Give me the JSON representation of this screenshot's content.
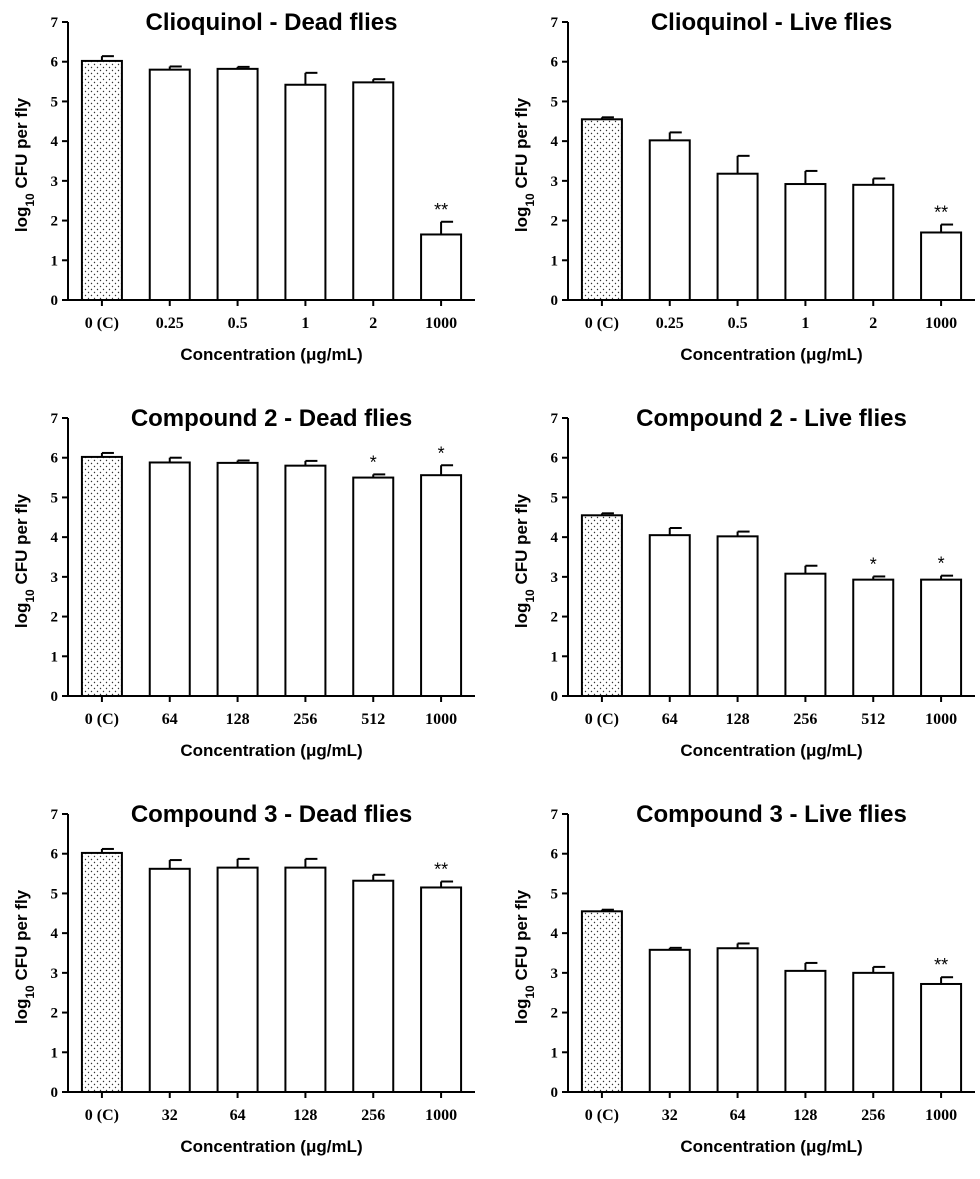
{
  "chart_data": [
    {
      "type": "bar",
      "title": "Clioquinol - Dead flies",
      "xlabel": "Concentration (μg/mL)",
      "ylabel_pre": "log",
      "ylabel_sub": "10",
      "ylabel_post": " CFU per fly",
      "ylim": [
        0,
        7
      ],
      "yticks": [
        "0",
        "1",
        "2",
        "3",
        "4",
        "5",
        "6",
        "7"
      ],
      "categories": [
        "0 (C)",
        "0.25",
        "0.5",
        "1",
        "2",
        "1000"
      ],
      "values": [
        6.02,
        5.8,
        5.82,
        5.42,
        5.48,
        1.65
      ],
      "errors": [
        0.12,
        0.08,
        0.05,
        0.3,
        0.08,
        0.32
      ],
      "significance": [
        "",
        "",
        "",
        "",
        "",
        "**"
      ],
      "control_pattern": "dotted"
    },
    {
      "type": "bar",
      "title": "Clioquinol - Live flies",
      "xlabel": "Concentration (μg/mL)",
      "ylabel_pre": "log",
      "ylabel_sub": "10",
      "ylabel_post": " CFU per fly",
      "ylim": [
        0,
        7
      ],
      "yticks": [
        "0",
        "1",
        "2",
        "3",
        "4",
        "5",
        "6",
        "7"
      ],
      "categories": [
        "0 (C)",
        "0.25",
        "0.5",
        "1",
        "2",
        "1000"
      ],
      "values": [
        4.55,
        4.02,
        3.18,
        2.92,
        2.9,
        1.7
      ],
      "errors": [
        0.05,
        0.2,
        0.45,
        0.33,
        0.16,
        0.2
      ],
      "significance": [
        "",
        "",
        "",
        "",
        "",
        "**"
      ],
      "control_pattern": "dotted"
    },
    {
      "type": "bar",
      "title": "Compound 2 - Dead flies",
      "xlabel": "Concentration (μg/mL)",
      "ylabel_pre": "log",
      "ylabel_sub": "10",
      "ylabel_post": " CFU per fly",
      "ylim": [
        0,
        7
      ],
      "yticks": [
        "0",
        "1",
        "2",
        "3",
        "4",
        "5",
        "6",
        "7"
      ],
      "categories": [
        "0 (C)",
        "64",
        "128",
        "256",
        "512",
        "1000"
      ],
      "values": [
        6.02,
        5.88,
        5.87,
        5.8,
        5.5,
        5.56
      ],
      "errors": [
        0.1,
        0.12,
        0.06,
        0.12,
        0.08,
        0.25
      ],
      "significance": [
        "",
        "",
        "",
        "",
        "*",
        "*"
      ],
      "control_pattern": "dotted"
    },
    {
      "type": "bar",
      "title": "Compound 2 - Live flies",
      "xlabel": "Concentration (μg/mL)",
      "ylabel_pre": "log",
      "ylabel_sub": "10",
      "ylabel_post": " CFU per fly",
      "ylim": [
        0,
        7
      ],
      "yticks": [
        "0",
        "1",
        "2",
        "3",
        "4",
        "5",
        "6",
        "7"
      ],
      "categories": [
        "0 (C)",
        "64",
        "128",
        "256",
        "512",
        "1000"
      ],
      "values": [
        4.55,
        4.05,
        4.02,
        3.08,
        2.93,
        2.93
      ],
      "errors": [
        0.05,
        0.18,
        0.12,
        0.2,
        0.08,
        0.1
      ],
      "significance": [
        "",
        "",
        "",
        "",
        "*",
        "*"
      ],
      "control_pattern": "dotted"
    },
    {
      "type": "bar",
      "title": "Compound 3 - Dead flies",
      "xlabel": "Concentration (μg/mL)",
      "ylabel_pre": "log",
      "ylabel_sub": "10",
      "ylabel_post": " CFU per fly",
      "ylim": [
        0,
        7
      ],
      "yticks": [
        "0",
        "1",
        "2",
        "3",
        "4",
        "5",
        "6",
        "7"
      ],
      "categories": [
        "0 (C)",
        "32",
        "64",
        "128",
        "256",
        "1000"
      ],
      "values": [
        6.02,
        5.62,
        5.65,
        5.65,
        5.32,
        5.15
      ],
      "errors": [
        0.1,
        0.22,
        0.22,
        0.22,
        0.15,
        0.15
      ],
      "significance": [
        "",
        "",
        "",
        "",
        "",
        "**"
      ],
      "control_pattern": "dotted"
    },
    {
      "type": "bar",
      "title": "Compound 3 - Live flies",
      "xlabel": "Concentration (μg/mL)",
      "ylabel_pre": "log",
      "ylabel_sub": "10",
      "ylabel_post": " CFU per fly",
      "ylim": [
        0,
        7
      ],
      "yticks": [
        "0",
        "1",
        "2",
        "3",
        "4",
        "5",
        "6",
        "7"
      ],
      "categories": [
        "0 (C)",
        "32",
        "64",
        "128",
        "256",
        "1000"
      ],
      "values": [
        4.55,
        3.58,
        3.62,
        3.05,
        3.0,
        2.72
      ],
      "errors": [
        0.04,
        0.05,
        0.12,
        0.2,
        0.15,
        0.17
      ],
      "significance": [
        "",
        "",
        "",
        "",
        "",
        "**"
      ],
      "control_pattern": "dotted"
    }
  ]
}
